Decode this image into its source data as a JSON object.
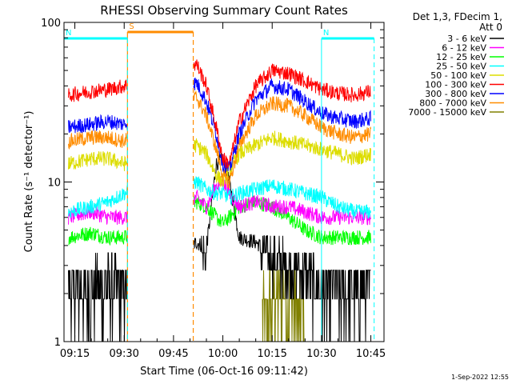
{
  "chart_data": {
    "type": "line",
    "title": "RHESSI Observing Summary Count Rates",
    "xlabel": "Start Time (06-Oct-16 09:11:42)",
    "ylabel": "Count Rate (s⁻¹ detector⁻¹)",
    "y_scale": "log",
    "ylim": [
      1,
      100
    ],
    "xlim": [
      "09:11:42",
      "10:49:00"
    ],
    "x_ticks": [
      "09:15",
      "09:30",
      "09:45",
      "10:00",
      "10:15",
      "10:30",
      "10:45"
    ],
    "y_tick_labels": [
      "1",
      "10",
      "100"
    ],
    "legend_header": [
      "Det 1,3, FDecim 1,",
      "Att 0"
    ],
    "legend_position": "right",
    "flag_labels": {
      "saa": "S",
      "night": "N"
    },
    "footer_date": "1-Sep-2022 12:55",
    "gaps": [
      [
        "09:31:00",
        "09:51:00"
      ],
      [
        "10:46:00",
        "10:49:00"
      ]
    ],
    "series": [
      {
        "name": "3 - 6 keV",
        "color": "#000000",
        "x": [
          "09:13",
          "09:20",
          "09:25",
          "09:30",
          "09:52",
          "09:55",
          "09:58",
          "10:00",
          "10:02",
          "10:05",
          "10:10",
          "10:15",
          "10:20",
          "10:25",
          "10:30",
          "10:35",
          "10:40",
          "10:45"
        ],
        "y": [
          1.8,
          1.8,
          2.0,
          1.8,
          4.2,
          3.8,
          13.0,
          14.0,
          10.0,
          4.5,
          4.2,
          3.5,
          3.0,
          2.4,
          1.8,
          1.8,
          1.8,
          1.8
        ]
      },
      {
        "name": "6 - 12 keV",
        "color": "#ff00ff",
        "x": [
          "09:13",
          "09:20",
          "09:25",
          "09:30",
          "09:52",
          "09:55",
          "09:58",
          "10:00",
          "10:02",
          "10:05",
          "10:10",
          "10:15",
          "10:20",
          "10:25",
          "10:30",
          "10:35",
          "10:40",
          "10:45"
        ],
        "y": [
          6.0,
          6.5,
          6.0,
          6.0,
          8.0,
          7.0,
          9.5,
          10.0,
          8.5,
          7.0,
          7.5,
          7.0,
          7.0,
          6.5,
          6.0,
          6.0,
          6.0,
          6.0
        ]
      },
      {
        "name": "12 - 25 keV",
        "color": "#00ff00",
        "x": [
          "09:13",
          "09:20",
          "09:25",
          "09:30",
          "09:52",
          "09:55",
          "09:58",
          "10:00",
          "10:02",
          "10:05",
          "10:10",
          "10:15",
          "10:20",
          "10:25",
          "10:30",
          "10:35",
          "10:40",
          "10:45"
        ],
        "y": [
          4.5,
          4.8,
          4.5,
          4.5,
          7.5,
          7.0,
          6.0,
          5.5,
          6.0,
          7.0,
          7.5,
          7.0,
          6.0,
          5.0,
          4.5,
          4.5,
          4.5,
          4.5
        ]
      },
      {
        "name": "25 - 50 keV",
        "color": "#00ffff",
        "x": [
          "09:13",
          "09:20",
          "09:25",
          "09:30",
          "09:52",
          "09:55",
          "09:58",
          "10:00",
          "10:02",
          "10:05",
          "10:10",
          "10:15",
          "10:20",
          "10:25",
          "10:30",
          "10:35",
          "10:40",
          "10:45"
        ],
        "y": [
          6.5,
          7.0,
          7.5,
          8.5,
          10.0,
          9.0,
          8.5,
          8.5,
          8.0,
          8.5,
          9.0,
          9.5,
          9.0,
          8.5,
          8.0,
          7.0,
          6.5,
          6.5
        ]
      },
      {
        "name": "50 - 100 keV",
        "color": "#dddd00",
        "x": [
          "09:13",
          "09:20",
          "09:25",
          "09:30",
          "09:52",
          "09:55",
          "09:58",
          "10:00",
          "10:02",
          "10:05",
          "10:10",
          "10:15",
          "10:20",
          "10:25",
          "10:30",
          "10:35",
          "10:40",
          "10:45"
        ],
        "y": [
          13,
          14,
          14,
          13,
          17,
          15,
          11,
          10,
          12,
          15,
          17,
          19,
          18,
          17,
          16,
          15,
          14,
          15
        ]
      },
      {
        "name": "100 - 300 keV",
        "color": "#ff0000",
        "x": [
          "09:13",
          "09:20",
          "09:25",
          "09:30",
          "09:52",
          "09:55",
          "09:58",
          "10:00",
          "10:02",
          "10:05",
          "10:10",
          "10:15",
          "10:20",
          "10:25",
          "10:30",
          "10:35",
          "10:40",
          "10:45"
        ],
        "y": [
          35,
          37,
          38,
          40,
          55,
          40,
          22,
          14,
          13,
          24,
          40,
          50,
          48,
          43,
          38,
          36,
          35,
          37
        ]
      },
      {
        "name": "300 - 800 keV",
        "color": "#0000ff",
        "x": [
          "09:13",
          "09:20",
          "09:25",
          "09:30",
          "09:52",
          "09:55",
          "09:58",
          "10:00",
          "10:02",
          "10:05",
          "10:10",
          "10:15",
          "10:20",
          "10:25",
          "10:30",
          "10:35",
          "10:40",
          "10:45"
        ],
        "y": [
          22,
          23,
          24,
          23,
          42,
          32,
          20,
          13,
          12,
          20,
          33,
          40,
          38,
          32,
          27,
          25,
          24,
          25
        ]
      },
      {
        "name": "800 - 7000 keV",
        "color": "#ff8c00",
        "x": [
          "09:13",
          "09:20",
          "09:25",
          "09:30",
          "09:52",
          "09:55",
          "09:58",
          "10:00",
          "10:02",
          "10:05",
          "10:10",
          "10:15",
          "10:20",
          "10:25",
          "10:30",
          "10:35",
          "10:40",
          "10:45"
        ],
        "y": [
          18,
          19,
          19,
          18,
          34,
          26,
          16,
          11,
          10,
          17,
          26,
          31,
          30,
          26,
          22,
          20,
          19,
          20
        ]
      },
      {
        "name": "7000 - 15000 keV",
        "color": "#808000",
        "x": [
          "10:12",
          "10:15",
          "10:18",
          "10:20",
          "10:22",
          "10:25"
        ],
        "y": [
          1.2,
          1.5,
          1.8,
          1.5,
          1.3,
          1.2
        ]
      }
    ],
    "flag_bars": [
      {
        "kind": "saa",
        "label_key": "saa",
        "color": "#ff8c00",
        "from": "09:31:00",
        "to": "09:51:00"
      },
      {
        "kind": "night",
        "label_key": "night",
        "color": "#00ffff",
        "from": "09:11:42",
        "to": "09:31:00"
      },
      {
        "kind": "night",
        "label_key": "night",
        "color": "#00ffff",
        "from": "10:30:00",
        "to": "10:46:00"
      }
    ]
  }
}
